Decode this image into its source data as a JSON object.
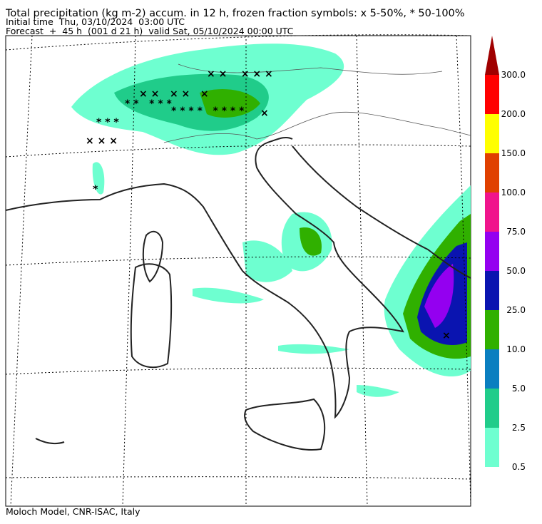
{
  "header": {
    "title": "Total precipitation (kg m-2) accum. in 12 h, frozen fraction symbols: x 5-50%, * 50-100%",
    "initial_time": "Initial time  Thu, 03/10/2024  03:00 UTC",
    "forecast": "Forecast  +  45 h  (001 d 21 h)  valid Sat, 05/10/2024 00:00 UTC"
  },
  "colorbar": {
    "levels": [
      0.5,
      2.5,
      {
        "value": 5,
        "label": "5.0"
      },
      {
        "value": 10,
        "label": "10.0"
      },
      {
        "value": 25,
        "label": "25.0"
      },
      {
        "value": 50,
        "label": "50.0"
      },
      {
        "value": 75,
        "label": "75.0"
      },
      {
        "value": 100,
        "label": "100.0"
      },
      {
        "value": 150,
        "label": "150.0"
      },
      {
        "value": 200,
        "label": "200.0"
      },
      {
        "value": 300,
        "label": "300.0"
      }
    ],
    "colors": [
      "#6effd0",
      "#20cc8a",
      "#0a7fc0",
      "#30b000",
      "#0a14b0",
      "#9400f0",
      "#f0148c",
      "#e04000",
      "#ffff00",
      "#ff0000",
      "#a00000"
    ],
    "extend": "max"
  },
  "footer": "Moloch Model, CNR-ISAC, Italy"
}
